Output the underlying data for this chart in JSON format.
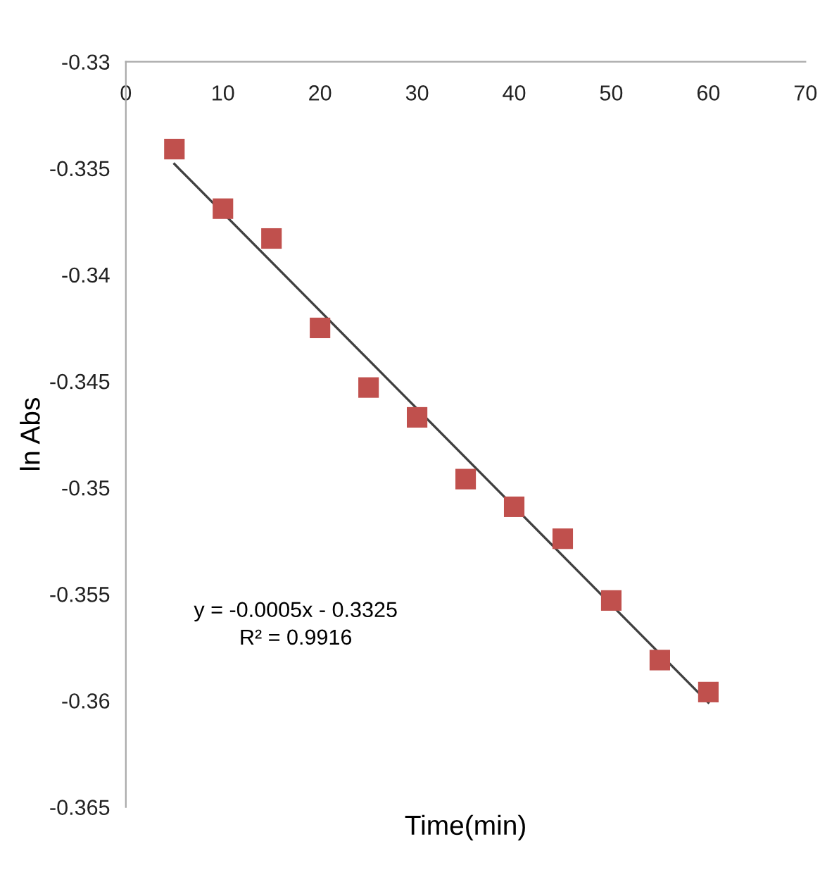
{
  "chart_data": {
    "type": "scatter",
    "xlabel": "Time(min)",
    "ylabel": "ln Abs",
    "annotations": [
      "y = -0.0005x - 0.3325",
      "R² = 0.9916"
    ],
    "series": [
      {
        "color": "#c0504d",
        "marker": "square",
        "x": [
          5,
          10,
          15,
          20,
          25,
          30,
          35,
          40,
          45,
          50,
          55,
          60
        ],
        "values": [
          -0.3341,
          -0.3369,
          -0.3383,
          -0.3425,
          -0.3453,
          -0.3467,
          -0.3496,
          -0.3509,
          -0.3524,
          -0.3553,
          -0.3581,
          -0.3596
        ]
      },
      {
        "type": "line",
        "color": "#404040",
        "x": [
          5,
          60
        ],
        "values": [
          -0.3348,
          -0.3601
        ]
      }
    ],
    "xlim": [
      0,
      70
    ],
    "xticks": [
      0,
      10,
      20,
      30,
      40,
      50,
      60,
      70
    ],
    "ylim": [
      -0.365,
      -0.33
    ],
    "yticks": [
      -0.365,
      -0.36,
      -0.355,
      -0.35,
      -0.345,
      -0.34,
      -0.335,
      -0.33
    ],
    "grid": false,
    "legend": false
  }
}
